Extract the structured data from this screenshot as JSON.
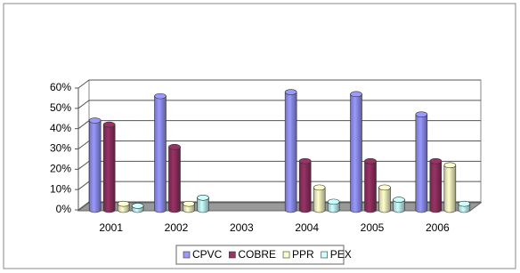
{
  "chart_data": {
    "type": "bar",
    "style": "3d-cylinder",
    "categories": [
      "2001",
      "2002",
      "2003",
      "2004",
      "2005",
      "2006"
    ],
    "series": [
      {
        "name": "CPVC",
        "color": "#9999ff",
        "values": [
          44,
          56,
          null,
          58,
          57,
          47
        ]
      },
      {
        "name": "COBRE",
        "color": "#993366",
        "values": [
          42,
          31,
          null,
          24,
          24,
          24
        ]
      },
      {
        "name": "PPR",
        "color": "#ffffcc",
        "values": [
          3,
          3,
          null,
          11,
          11,
          22
        ]
      },
      {
        "name": "PEX",
        "color": "#ccffff",
        "values": [
          2,
          6,
          null,
          4,
          5,
          3
        ]
      }
    ],
    "ylim": [
      0,
      60
    ],
    "yticks": [
      {
        "value": 0,
        "label": "0%"
      },
      {
        "value": 10,
        "label": "10%"
      },
      {
        "value": 20,
        "label": "20%"
      },
      {
        "value": 30,
        "label": "30%"
      },
      {
        "value": 40,
        "label": "40%"
      },
      {
        "value": 50,
        "label": "50%"
      },
      {
        "value": 60,
        "label": "60%"
      }
    ],
    "grid": true,
    "legend": "bottom"
  }
}
